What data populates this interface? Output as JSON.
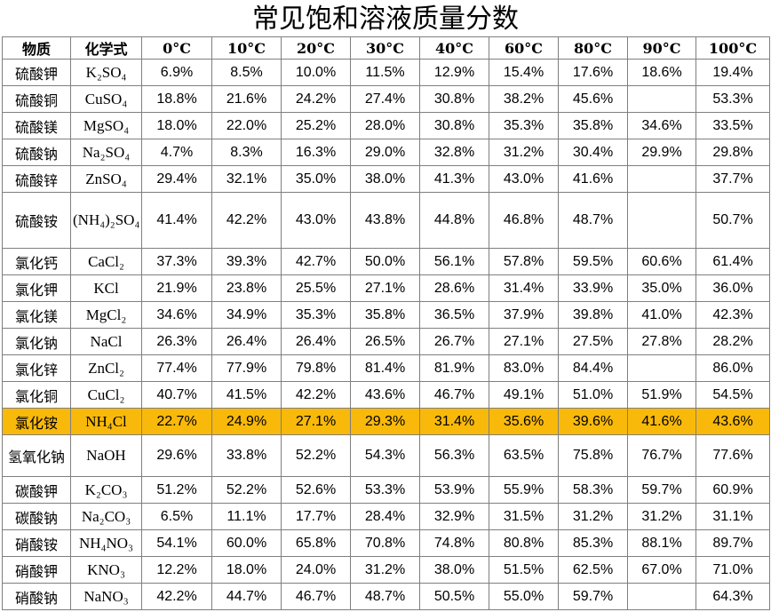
{
  "title": "常见饱和溶液质量分数",
  "headers": [
    "物质",
    "化学式",
    "0°C",
    "10°C",
    "20°C",
    "30°C",
    "40°C",
    "60°C",
    "80°C",
    "90°C",
    "100°C"
  ],
  "highlight_color": "#f9b90a",
  "rows": [
    {
      "name": "硫酸钾",
      "formula": "K₂SO₄",
      "values": [
        "6.9%",
        "8.5%",
        "10.0%",
        "11.5%",
        "12.9%",
        "15.4%",
        "17.6%",
        "18.6%",
        "19.4%"
      ]
    },
    {
      "name": "硫酸铜",
      "formula": "CuSO₄",
      "values": [
        "18.8%",
        "21.6%",
        "24.2%",
        "27.4%",
        "30.8%",
        "38.2%",
        "45.6%",
        "",
        "53.3%"
      ]
    },
    {
      "name": "硫酸镁",
      "formula": "MgSO₄",
      "values": [
        "18.0%",
        "22.0%",
        "25.2%",
        "28.0%",
        "30.8%",
        "35.3%",
        "35.8%",
        "34.6%",
        "33.5%"
      ]
    },
    {
      "name": "硫酸钠",
      "formula": "Na₂SO₄",
      "values": [
        "4.7%",
        "8.3%",
        "16.3%",
        "29.0%",
        "32.8%",
        "31.2%",
        "30.4%",
        "29.9%",
        "29.8%"
      ]
    },
    {
      "name": "硫酸锌",
      "formula": "ZnSO₄",
      "values": [
        "29.4%",
        "32.1%",
        "35.0%",
        "38.0%",
        "41.3%",
        "43.0%",
        "41.6%",
        "",
        "37.7%"
      ]
    },
    {
      "name": "硫酸铵",
      "formula": "(NH₄)₂SO₄",
      "values": [
        "41.4%",
        "42.2%",
        "43.0%",
        "43.8%",
        "44.8%",
        "46.8%",
        "48.7%",
        "",
        "50.7%"
      ]
    },
    {
      "name": "氯化钙",
      "formula": "CaCl₂",
      "values": [
        "37.3%",
        "39.3%",
        "42.7%",
        "50.0%",
        "56.1%",
        "57.8%",
        "59.5%",
        "60.6%",
        "61.4%"
      ]
    },
    {
      "name": "氯化钾",
      "formula": "KCl",
      "values": [
        "21.9%",
        "23.8%",
        "25.5%",
        "27.1%",
        "28.6%",
        "31.4%",
        "33.9%",
        "35.0%",
        "36.0%"
      ]
    },
    {
      "name": "氯化镁",
      "formula": "MgCl₂",
      "values": [
        "34.6%",
        "34.9%",
        "35.3%",
        "35.8%",
        "36.5%",
        "37.9%",
        "39.8%",
        "41.0%",
        "42.3%"
      ]
    },
    {
      "name": "氯化钠",
      "formula": "NaCl",
      "values": [
        "26.3%",
        "26.4%",
        "26.4%",
        "26.5%",
        "26.7%",
        "27.1%",
        "27.5%",
        "27.8%",
        "28.2%"
      ]
    },
    {
      "name": "氯化锌",
      "formula": "ZnCl₂",
      "values": [
        "77.4%",
        "77.9%",
        "79.8%",
        "81.4%",
        "81.9%",
        "83.0%",
        "84.4%",
        "",
        "86.0%"
      ]
    },
    {
      "name": "氯化铜",
      "formula": "CuCl₂",
      "values": [
        "40.7%",
        "41.5%",
        "42.2%",
        "43.6%",
        "46.7%",
        "49.1%",
        "51.0%",
        "51.9%",
        "54.5%"
      ]
    },
    {
      "name": "氯化铵",
      "formula": "NH₄Cl",
      "values": [
        "22.7%",
        "24.9%",
        "27.1%",
        "29.3%",
        "31.4%",
        "35.6%",
        "39.6%",
        "41.6%",
        "43.6%"
      ],
      "highlight": true
    },
    {
      "name": "氢氧化钠",
      "formula": "NaOH",
      "values": [
        "29.6%",
        "33.8%",
        "52.2%",
        "54.3%",
        "56.3%",
        "63.5%",
        "75.8%",
        "76.7%",
        "77.6%"
      ]
    },
    {
      "name": "碳酸钾",
      "formula": "K₂CO₃",
      "values": [
        "51.2%",
        "52.2%",
        "52.6%",
        "53.3%",
        "53.9%",
        "55.9%",
        "58.3%",
        "59.7%",
        "60.9%"
      ]
    },
    {
      "name": "碳酸钠",
      "formula": "Na₂CO₃",
      "values": [
        "6.5%",
        "11.1%",
        "17.7%",
        "28.4%",
        "32.9%",
        "31.5%",
        "31.2%",
        "31.2%",
        "31.1%"
      ]
    },
    {
      "name": "硝酸铵",
      "formula": "NH₄NO₃",
      "values": [
        "54.1%",
        "60.0%",
        "65.8%",
        "70.8%",
        "74.8%",
        "80.8%",
        "85.3%",
        "88.1%",
        "89.7%"
      ]
    },
    {
      "name": "硝酸钾",
      "formula": "KNO₃",
      "values": [
        "12.2%",
        "18.0%",
        "24.0%",
        "31.2%",
        "38.0%",
        "51.5%",
        "62.5%",
        "67.0%",
        "71.0%"
      ]
    },
    {
      "name": "硝酸钠",
      "formula": "NaNO₃",
      "values": [
        "42.2%",
        "44.7%",
        "46.7%",
        "48.7%",
        "50.5%",
        "55.0%",
        "59.7%",
        "",
        "64.3%"
      ]
    }
  ]
}
